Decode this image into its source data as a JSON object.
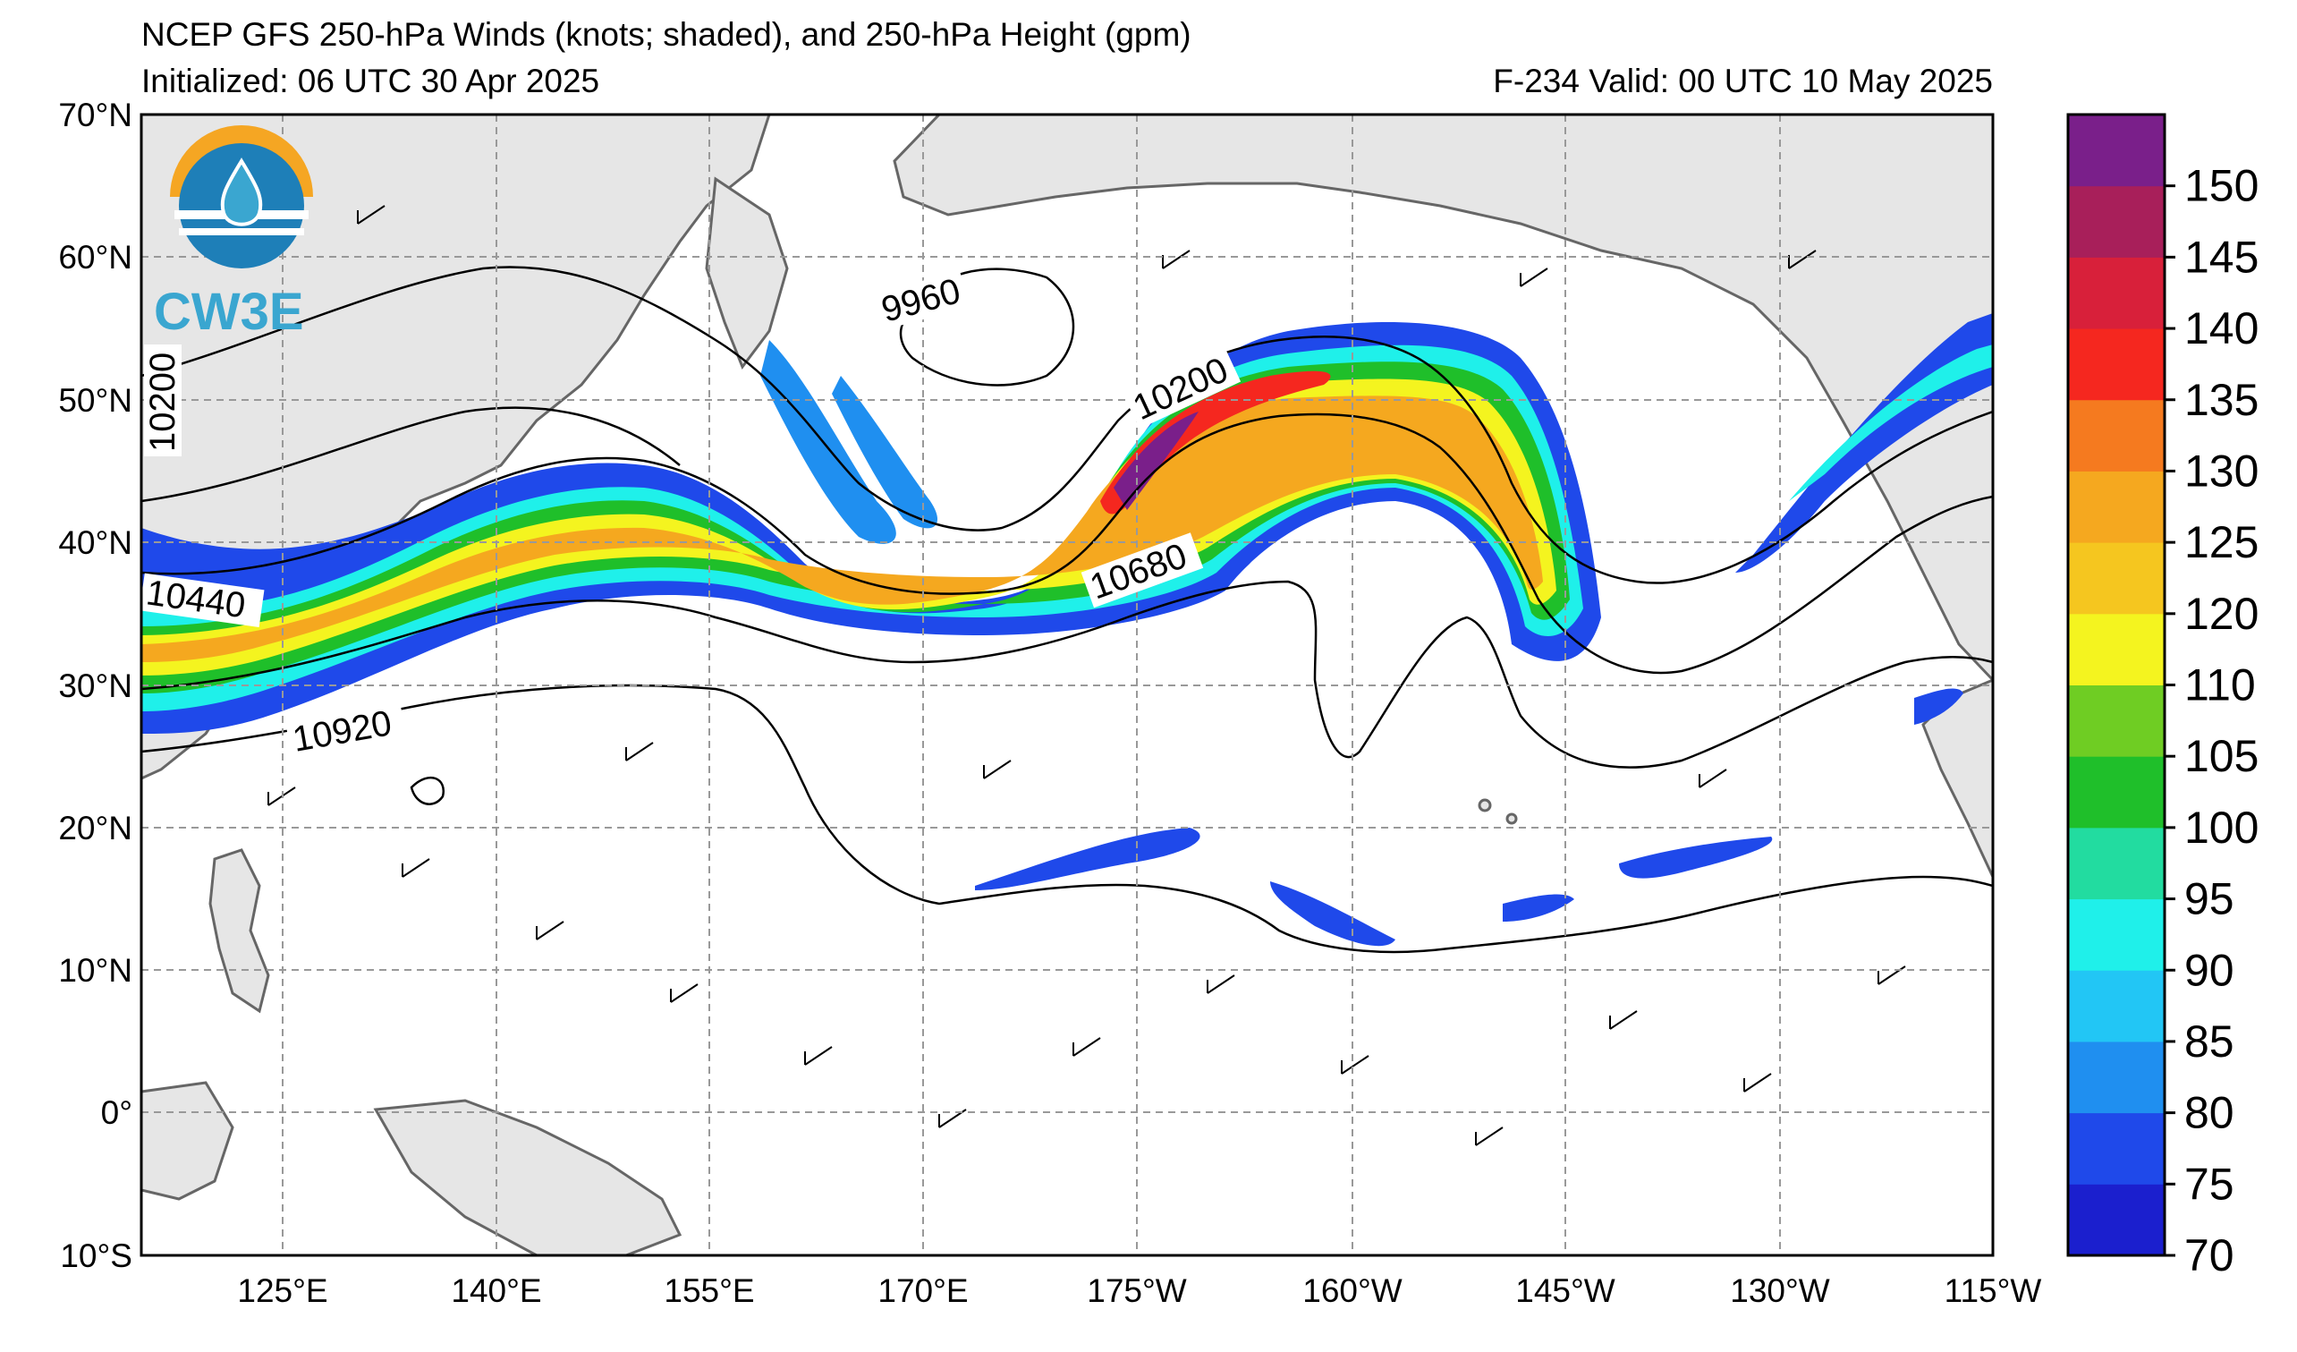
{
  "header": {
    "title": "NCEP GFS 250-hPa Winds (knots; shaded), and 250-hPa Height (gpm)",
    "initialized": "Initialized: 06 UTC 30 Apr 2025",
    "valid": "F-234  Valid: 00 UTC 10 May 2025"
  },
  "logo": {
    "text": "CW3E",
    "colors": {
      "orange": "#f5a623",
      "blue": "#1e7fb8",
      "teal": "#3aa6d0"
    }
  },
  "map": {
    "lon_range": [
      110,
      -115
    ],
    "lat_range": [
      -10,
      70
    ],
    "lat_labels": [
      "70°N",
      "60°N",
      "50°N",
      "40°N",
      "30°N",
      "20°N",
      "10°N",
      "0°",
      "10°S"
    ],
    "lon_labels": [
      "125°E",
      "140°E",
      "155°E",
      "170°E",
      "175°W",
      "160°W",
      "145°W",
      "130°W",
      "115°W"
    ],
    "contour_labels": [
      {
        "text": "9960"
      },
      {
        "text": "10200"
      },
      {
        "text": "10200"
      },
      {
        "text": "10440"
      },
      {
        "text": "10680"
      },
      {
        "text": "10920"
      }
    ]
  },
  "colorbar": {
    "levels": [
      "70",
      "75",
      "80",
      "85",
      "90",
      "95",
      "100",
      "105",
      "110",
      "120",
      "125",
      "130",
      "135",
      "140",
      "145",
      "150"
    ],
    "colors": [
      "#1b1fce",
      "#1f49ea",
      "#1f8ff0",
      "#22c6f5",
      "#1ff0ea",
      "#22dca0",
      "#1fbf2a",
      "#6fcd23",
      "#f4f41f",
      "#f5c61f",
      "#f5a81f",
      "#f57a1f",
      "#f5271f",
      "#d8203a",
      "#a81f5a",
      "#7a1f8a"
    ]
  }
}
